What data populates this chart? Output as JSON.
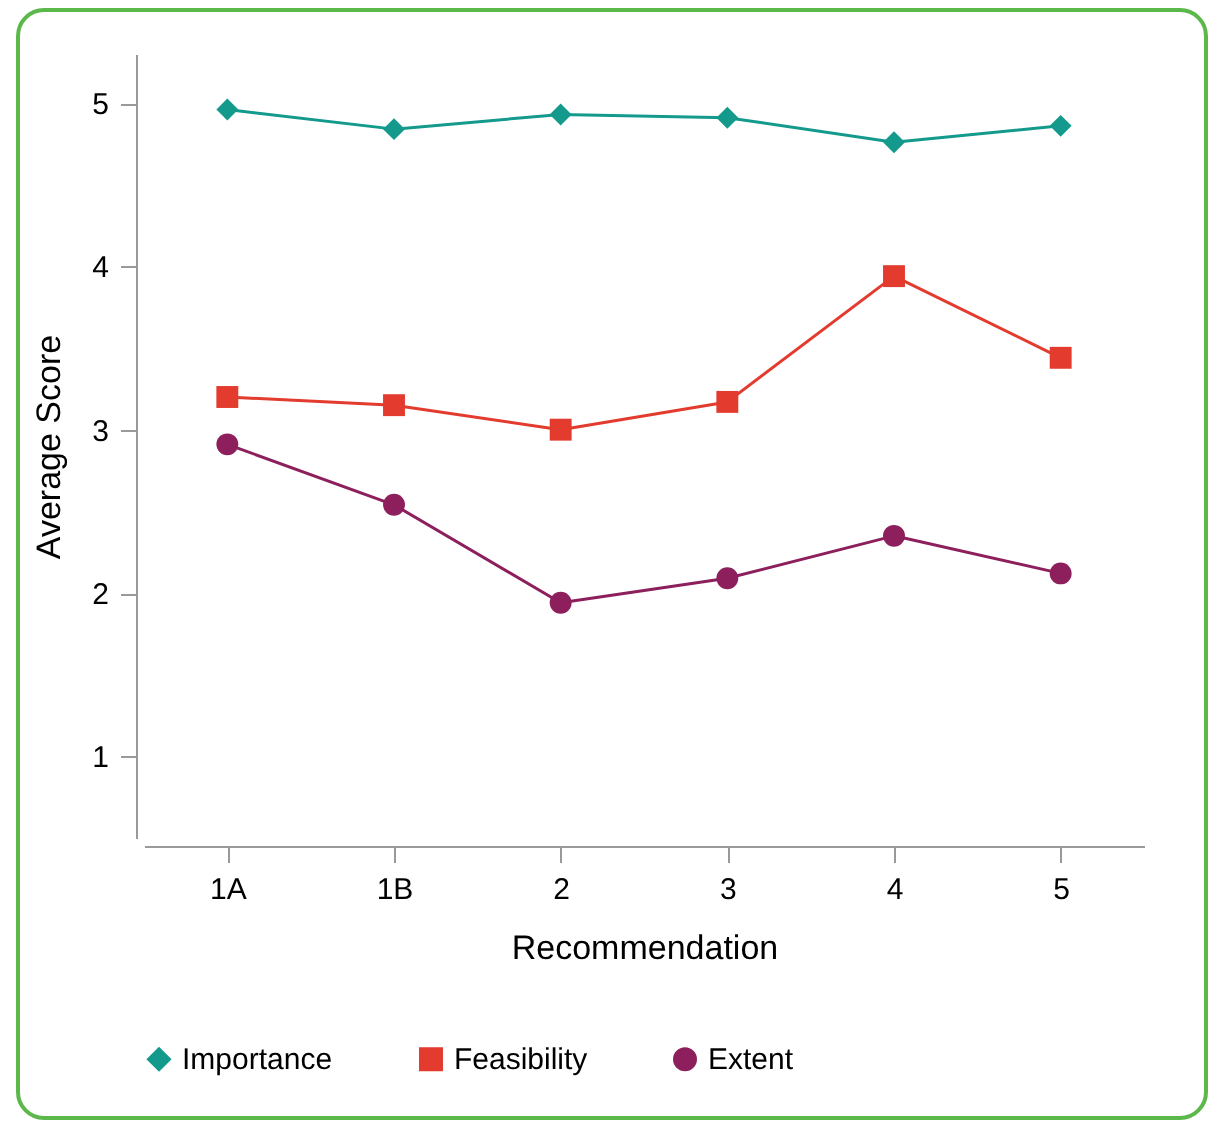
{
  "chart_data": {
    "type": "line",
    "xlabel": "Recommendation",
    "ylabel": "Average Score",
    "categories": [
      "1A",
      "1B",
      "2",
      "3",
      "4",
      "5"
    ],
    "ylim": [
      0.5,
      5.3
    ],
    "yticks": [
      1,
      2,
      3,
      4,
      5
    ],
    "grid": false,
    "legend": "bottom",
    "series": [
      {
        "name": "Importance",
        "color": "#139a8c",
        "marker": "diamond",
        "values": [
          4.96,
          4.84,
          4.93,
          4.91,
          4.76,
          4.86
        ]
      },
      {
        "name": "Feasibility",
        "color": "#e33b2e",
        "marker": "square",
        "values": [
          3.2,
          3.15,
          3.0,
          3.17,
          3.94,
          3.44
        ]
      },
      {
        "name": "Extent",
        "color": "#8c1f5c",
        "marker": "circle",
        "values": [
          2.91,
          2.54,
          1.94,
          2.09,
          2.35,
          2.12
        ]
      }
    ]
  }
}
